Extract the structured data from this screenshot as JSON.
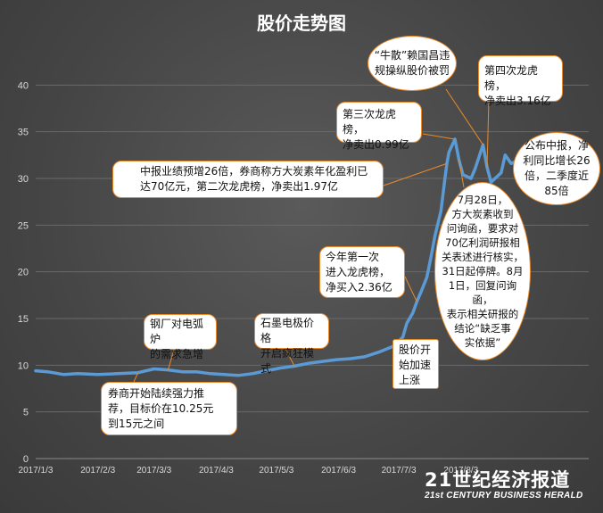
{
  "title": "股价走势图",
  "chart_data": {
    "type": "line",
    "title": "股价走势图",
    "xlabel": "",
    "ylabel": "",
    "ylim": [
      0,
      45
    ],
    "yticks": [
      0,
      5,
      10,
      15,
      20,
      25,
      30,
      35,
      40
    ],
    "xtick_labels": [
      "2017/1/3",
      "2017/2/3",
      "2017/3/3",
      "2017/4/3",
      "2017/5/3",
      "2017/6/3",
      "2017/7/3",
      "2017/8/3"
    ],
    "grid": true,
    "line_color": "#5b9bd5",
    "x": [
      "2017/1/3",
      "2017/1/9",
      "2017/1/17",
      "2017/1/24",
      "2017/2/3",
      "2017/2/13",
      "2017/2/23",
      "2017/3/3",
      "2017/3/10",
      "2017/3/17",
      "2017/3/24",
      "2017/3/31",
      "2017/4/7",
      "2017/4/14",
      "2017/4/21",
      "2017/4/28",
      "2017/5/5",
      "2017/5/12",
      "2017/5/19",
      "2017/5/26",
      "2017/6/2",
      "2017/6/9",
      "2017/6/16",
      "2017/6/23",
      "2017/6/30",
      "2017/7/5",
      "2017/7/7",
      "2017/7/10",
      "2017/7/12",
      "2017/7/14",
      "2017/7/17",
      "2017/7/19",
      "2017/7/21",
      "2017/7/24",
      "2017/7/25",
      "2017/7/26",
      "2017/7/27",
      "2017/7/28",
      "2017/7/31",
      "2017/8/2",
      "2017/8/4",
      "2017/8/8",
      "2017/8/10",
      "2017/8/14",
      "2017/8/16",
      "2017/8/18",
      "2017/8/21",
      "2017/8/23",
      "2017/8/25",
      "2017/8/28",
      "2017/8/30",
      "2017/9/1"
    ],
    "values": [
      9.4,
      9.3,
      9.0,
      9.1,
      9.0,
      9.1,
      9.2,
      9.6,
      9.5,
      9.3,
      9.3,
      9.1,
      9.0,
      8.9,
      9.1,
      9.4,
      9.7,
      9.9,
      10.2,
      10.4,
      10.6,
      10.7,
      10.9,
      11.4,
      12.0,
      13.0,
      14.5,
      15.6,
      16.8,
      17.8,
      19.4,
      21.5,
      23.8,
      26.5,
      28.2,
      30.0,
      31.6,
      32.8,
      34.2,
      32.0,
      30.4,
      30.0,
      31.0,
      33.6,
      31.2,
      29.6,
      30.2,
      30.6,
      32.5,
      31.6,
      31.8,
      32.0
    ]
  },
  "annotations": [
    {
      "id": "a1",
      "text": "“牛散”赖国昌违\n规操纵股价被罚"
    },
    {
      "id": "a2",
      "text": "第四次龙虎榜，\n净卖出3.16亿"
    },
    {
      "id": "a3",
      "text": "第三次龙虎榜，\n净卖出0.99亿"
    },
    {
      "id": "a4",
      "text": "公布中报，净\n利同比增长26\n倍，二季度近\n85倍"
    },
    {
      "id": "a5",
      "text": "中报业绩预增26倍，券商称方大炭素年化盈利已\n达70亿元，第二次龙虎榜，净卖出1.97亿"
    },
    {
      "id": "a6",
      "text": "7月28日，\n方大炭素收到\n问询函，要求对\n70亿利润研报相\n关表述进行核实，\n31日起停牌。8月\n1日，回复问询函，\n表示相关研报的\n结论“缺乏事\n实依据”"
    },
    {
      "id": "a7",
      "text": "今年第一次\n进入龙虎榜，\n净买入2.36亿"
    },
    {
      "id": "a8",
      "text": "钢厂对电弧炉\n的需求急增"
    },
    {
      "id": "a9",
      "text": "石墨电极价格\n开启疯狂模式"
    },
    {
      "id": "a10",
      "text": "股价开\n始加速\n上涨"
    },
    {
      "id": "a11",
      "text": "券商开始陆续强力推\n荐，目标价在10.25元\n到15元之间"
    }
  ],
  "logo": {
    "main": "21世纪经济报道",
    "sub": "21st CENTURY BUSINESS HERALD"
  }
}
